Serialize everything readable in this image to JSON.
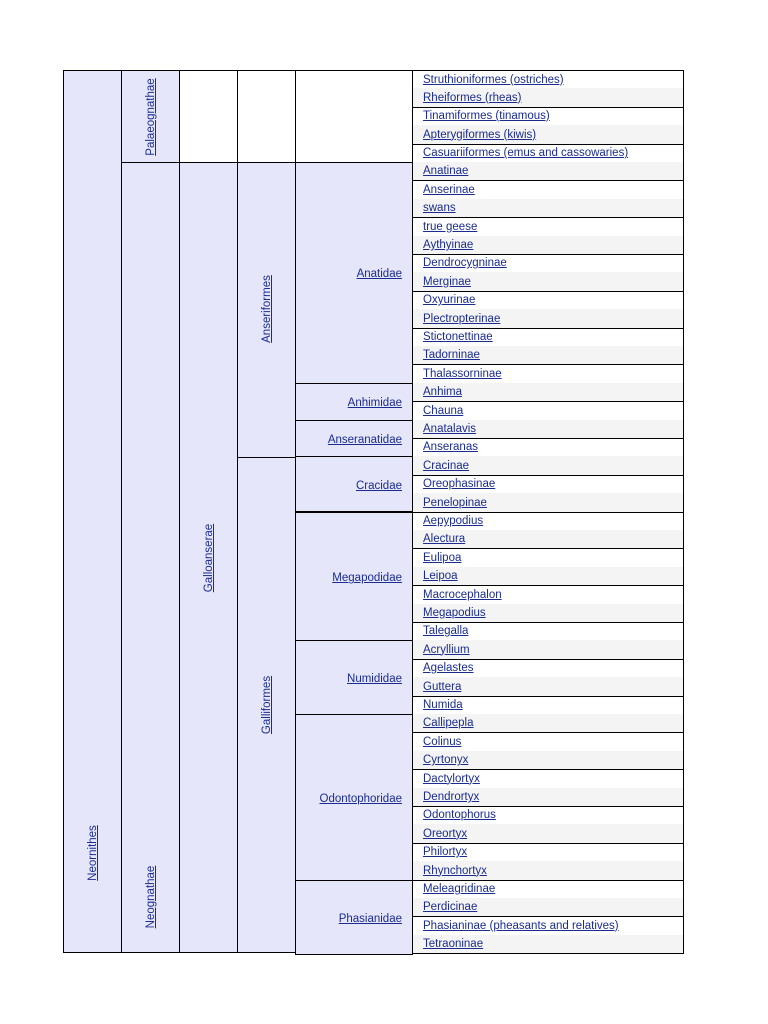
{
  "infraclass": "Neornithes",
  "superorders": [
    "Palaeognathae",
    "Neognathae"
  ],
  "clade": "Galloanserae",
  "orders": [
    "Anseriformes",
    "Galliformes"
  ],
  "families": [
    {
      "name": "",
      "rows": [
        "Struthioniformes (ostriches)",
        "Rheiformes (rheas)",
        "Tinamiformes (tinamous)",
        "Apterygiformes (kiwis)",
        "Casuariiformes (emus and cassowaries)"
      ]
    },
    {
      "name": "Anatidae",
      "rows": [
        "Anatinae",
        "Anserinae",
        "swans",
        "true geese",
        "Aythyinae",
        "Dendrocygninae",
        "Merginae",
        "Oxyurinae",
        "Plectropterinae",
        "Stictonettinae",
        "Tadorninae",
        "Thalassorninae"
      ]
    },
    {
      "name": "Anhimidae",
      "rows": [
        "Anhima",
        "Chauna"
      ]
    },
    {
      "name": "Anseranatidae",
      "rows": [
        "Anatalavis",
        "Anseranas"
      ]
    },
    {
      "name": "Cracidae",
      "rows": [
        "Cracinae",
        "Oreophasinae",
        "Penelopinae"
      ]
    },
    {
      "name": "Megapodidae",
      "rows": [
        "Aepypodius",
        "Alectura",
        "Eulipoa",
        "Leipoa",
        "Macrocephalon",
        "Megapodius",
        "Talegalla"
      ]
    },
    {
      "name": "Numididae",
      "rows": [
        "Acryllium",
        "Agelastes",
        "Guttera",
        "Numida"
      ]
    },
    {
      "name": "Odontophoridae",
      "rows": [
        "Callipepla",
        "Colinus",
        "Cyrtonyx",
        "Dactylortyx",
        "Dendrortyx",
        "Odontophorus",
        "Oreortyx",
        "Philortyx",
        "Rhynchortyx"
      ]
    },
    {
      "name": "Phasianidae",
      "rows": [
        "Meleagridinae",
        "Perdicinae",
        "Phasianinae (pheasants and relatives)",
        "Tetraoninae"
      ]
    }
  ]
}
